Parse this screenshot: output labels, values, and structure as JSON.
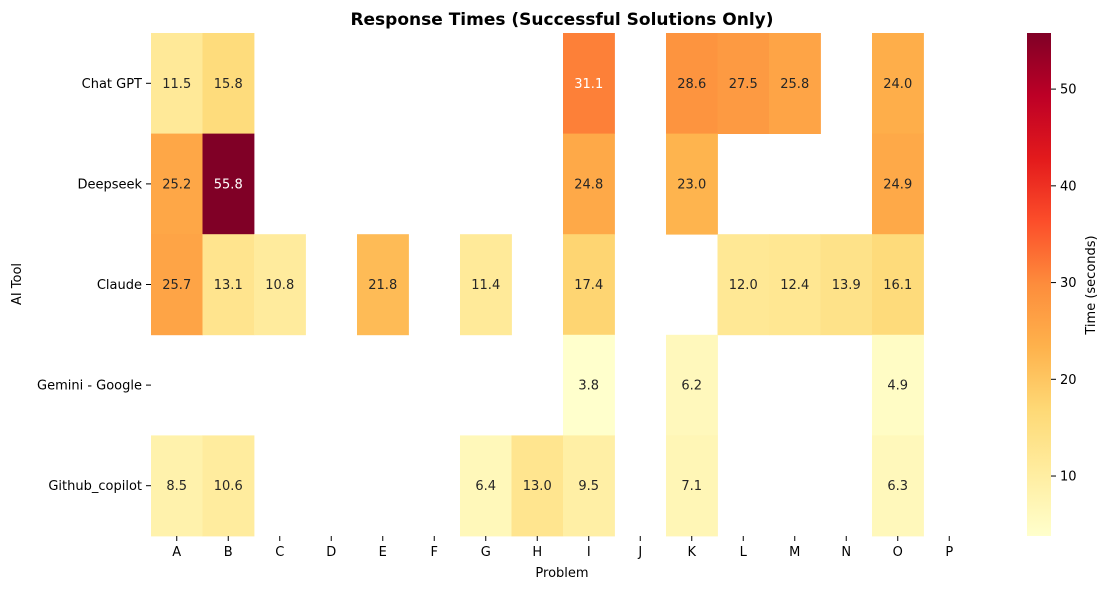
{
  "chart_data": {
    "type": "heatmap",
    "title": "Response Times (Successful Solutions Only)",
    "xlabel": "Problem",
    "ylabel": "AI Tool",
    "x_categories": [
      "A",
      "B",
      "C",
      "D",
      "E",
      "F",
      "G",
      "H",
      "I",
      "J",
      "K",
      "L",
      "M",
      "N",
      "O",
      "P"
    ],
    "y_categories": [
      "Chat GPT",
      "Deepseek",
      "Claude",
      "Gemini - Google",
      "Github_copilot"
    ],
    "values": [
      [
        11.5,
        15.8,
        null,
        null,
        null,
        null,
        null,
        null,
        31.1,
        null,
        28.6,
        27.5,
        25.8,
        null,
        24.0,
        null
      ],
      [
        25.2,
        55.8,
        null,
        null,
        null,
        null,
        null,
        null,
        24.8,
        null,
        23.0,
        null,
        null,
        null,
        24.9,
        null
      ],
      [
        25.7,
        13.1,
        10.8,
        null,
        21.8,
        null,
        11.4,
        null,
        17.4,
        null,
        null,
        12.0,
        12.4,
        13.9,
        16.1,
        null
      ],
      [
        null,
        null,
        null,
        null,
        null,
        null,
        null,
        null,
        3.8,
        null,
        6.2,
        null,
        null,
        null,
        4.9,
        null
      ],
      [
        8.5,
        10.6,
        null,
        null,
        null,
        null,
        6.4,
        13.0,
        9.5,
        null,
        7.1,
        null,
        null,
        null,
        6.3,
        null
      ]
    ],
    "annotation_decimals": 1,
    "colormap": "YlOrRd",
    "colorbar": {
      "label": "Time (seconds)",
      "range": [
        3.8,
        55.8
      ],
      "ticks": [
        10,
        20,
        30,
        40,
        50
      ]
    },
    "grid": false
  }
}
